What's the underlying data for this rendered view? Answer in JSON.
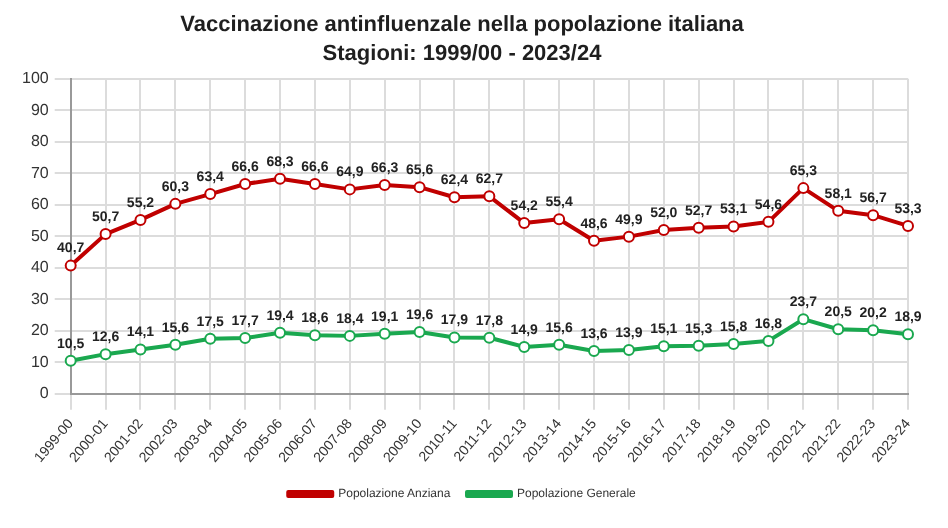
{
  "chart_data": {
    "type": "line",
    "title": "Vaccinazione antinfluenzale nella popolazione italiana",
    "subtitle": "Stagioni: 1999/00 - 2023/24",
    "categories": [
      "1999-00",
      "2000-01",
      "2001-02",
      "2002-03",
      "2003-04",
      "2004-05",
      "2005-06",
      "2006-07",
      "2007-08",
      "2008-09",
      "2009-10",
      "2010-11",
      "2011-12",
      "2012-13",
      "2013-14",
      "2014-15",
      "2015-16",
      "2016-17",
      "2017-18",
      "2018-19",
      "2019-20",
      "2020-21",
      "2021-22",
      "2022-23",
      "2023-24"
    ],
    "series": [
      {
        "name": "Popolazione Anziana",
        "color": "#c00000",
        "values": [
          40.7,
          50.7,
          55.2,
          60.3,
          63.4,
          66.6,
          68.3,
          66.6,
          64.9,
          66.3,
          65.6,
          62.4,
          62.7,
          54.2,
          55.4,
          48.6,
          49.9,
          52.0,
          52.7,
          53.1,
          54.6,
          65.3,
          58.1,
          56.7,
          53.3
        ],
        "value_labels": [
          "40,7",
          "50,7",
          "55,2",
          "60,3",
          "63,4",
          "66,6",
          "68,3",
          "66,6",
          "64,9",
          "66,3",
          "65,6",
          "62,4",
          "62,7",
          "54,2",
          "55,4",
          "48,6",
          "49,9",
          "52,0",
          "52,7",
          "53,1",
          "54,6",
          "65,3",
          "58,1",
          "56,7",
          "53,3"
        ]
      },
      {
        "name": "Popolazione Generale",
        "color": "#1aa84f",
        "values": [
          10.5,
          12.6,
          14.1,
          15.6,
          17.5,
          17.7,
          19.4,
          18.6,
          18.4,
          19.1,
          19.6,
          17.9,
          17.8,
          14.9,
          15.6,
          13.6,
          13.9,
          15.1,
          15.3,
          15.8,
          16.8,
          23.7,
          20.5,
          20.2,
          18.9
        ],
        "value_labels": [
          "10,5",
          "12,6",
          "14,1",
          "15,6",
          "17,5",
          "17,7",
          "19,4",
          "18,6",
          "18,4",
          "19,1",
          "19,6",
          "17,9",
          "17,8",
          "14,9",
          "15,6",
          "13,6",
          "13,9",
          "15,1",
          "15,3",
          "15,8",
          "16,8",
          "23,7",
          "20,5",
          "20,2",
          "18,9"
        ]
      }
    ],
    "ylim": [
      0,
      100
    ],
    "yticks": [
      0,
      10,
      20,
      30,
      40,
      50,
      60,
      70,
      80,
      90,
      100
    ],
    "grid": true,
    "legend": "bottom",
    "marker": "circle",
    "line_style": "solid"
  }
}
